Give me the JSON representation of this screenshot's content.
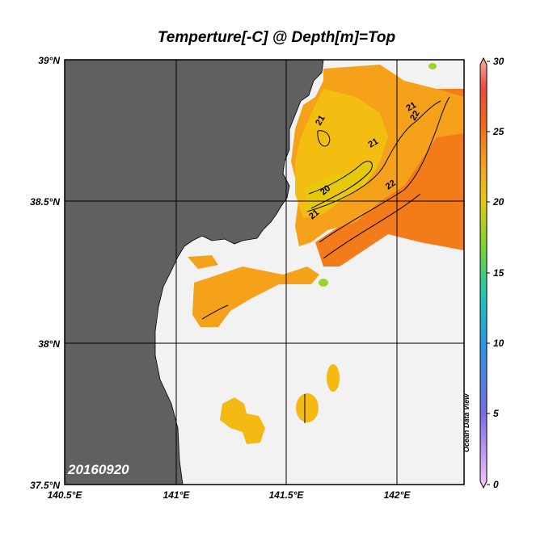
{
  "title": "Temperture[-C] @ Depth[m]=Top",
  "date_stamp": "20160920",
  "watermark": "Ocean Data View",
  "map": {
    "lon_range": [
      140.5,
      142.3
    ],
    "lat_range": [
      37.5,
      39.0
    ],
    "lat_ticks": [
      "39°N",
      "38.5°N",
      "38°N",
      "37.5°N"
    ],
    "lon_ticks": [
      "140.5°E",
      "141°E",
      "141.5°E",
      "142°E"
    ],
    "grid": true,
    "land_color": "#606060",
    "no_data_color": "#f2f2f2"
  },
  "colorbar": {
    "min": 0,
    "max": 30,
    "tick_labels": [
      "30",
      "25",
      "20",
      "15",
      "10",
      "5",
      "0"
    ]
  },
  "contours": {
    "labels": [
      "21",
      "21",
      "21",
      "22",
      "20",
      "21",
      "22"
    ]
  },
  "colors": {
    "warm_orange": "#f47b1a",
    "orange": "#f5a21a",
    "yellow_orange": "#f3bd12",
    "yellow": "#e6c90c",
    "green": "#9bd42a"
  }
}
